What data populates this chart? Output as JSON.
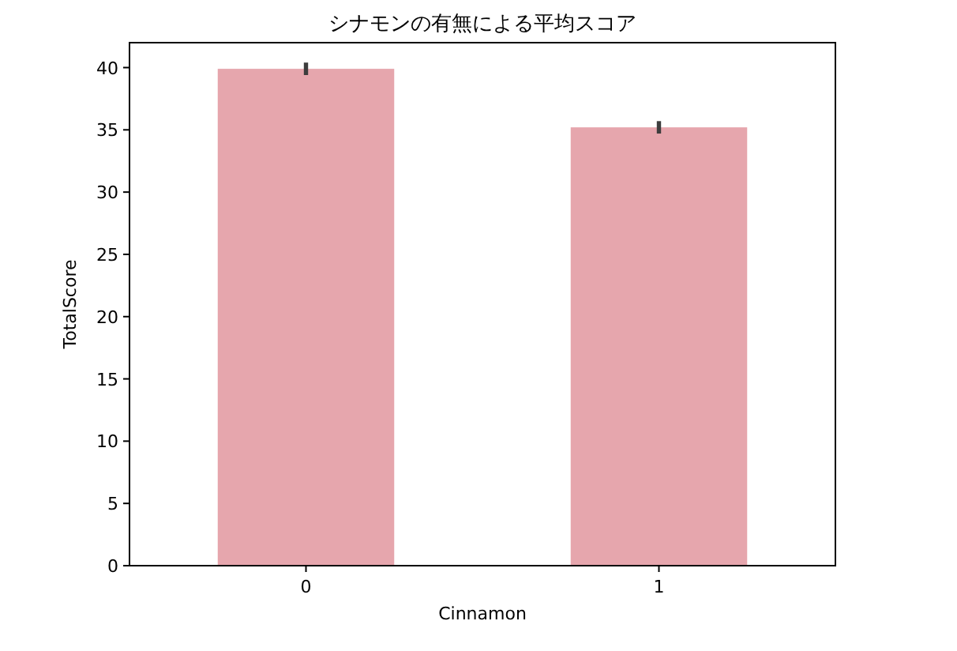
{
  "chart_data": {
    "type": "bar",
    "title": "シナモンの有無による平均スコア",
    "xlabel": "Cinnamon",
    "ylabel": "TotalScore",
    "categories": [
      "0",
      "1"
    ],
    "values": [
      39.9,
      35.2
    ],
    "errors": [
      0.5,
      0.5
    ],
    "color": "#e6a6ad",
    "ylim": [
      0,
      42
    ],
    "yticks": [
      0,
      5,
      10,
      15,
      20,
      25,
      30,
      35,
      40
    ],
    "grid": false
  }
}
